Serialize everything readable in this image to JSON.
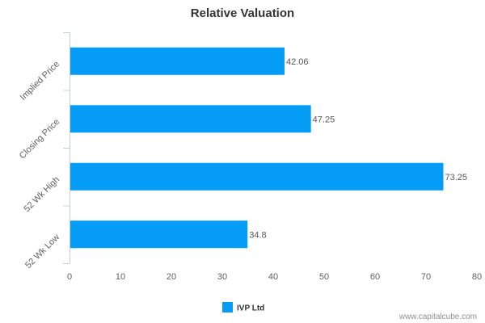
{
  "chart_data": {
    "type": "bar",
    "orientation": "horizontal",
    "title": "Relative Valuation",
    "categories": [
      "Implied Price",
      "Closing Price",
      "52 Wk High",
      "52 Wk Low"
    ],
    "series": [
      {
        "name": "IVP Ltd",
        "values": [
          42.06,
          47.25,
          73.25,
          34.8
        ]
      }
    ],
    "data_labels": [
      "42.06",
      "47.25",
      "73.25",
      "34.8"
    ],
    "xlim": [
      0,
      80
    ],
    "x_ticks": [
      "0",
      "10",
      "20",
      "30",
      "40",
      "50",
      "60",
      "70",
      "80"
    ],
    "grid": false,
    "legend_position": "bottom-center",
    "bar_color": "#049CF5"
  },
  "watermark": "www.capitalcube.com"
}
